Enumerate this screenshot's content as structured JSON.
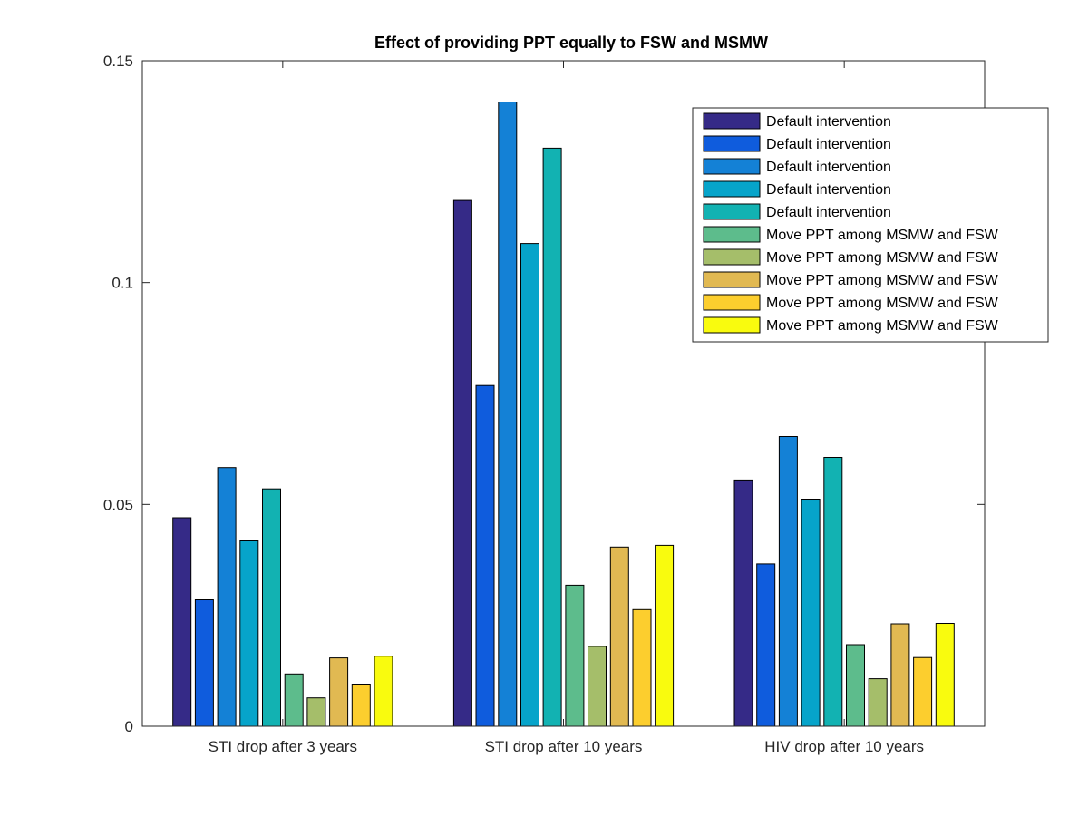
{
  "chart_data": {
    "type": "bar",
    "title": "Effect of providing PPT equally to FSW and MSMW",
    "xlabel": "",
    "ylabel": "",
    "ylim": [
      0,
      0.15
    ],
    "yticks": [
      0,
      0.05,
      0.1,
      0.15
    ],
    "ytick_labels": [
      "0",
      "0.05",
      "0.1",
      "0.15"
    ],
    "categories": [
      "STI drop after 3 years",
      "STI drop after 10 years",
      "HIV drop after 10 years"
    ],
    "legend_position": "top-right",
    "series": [
      {
        "name": "Default intervention",
        "color": "#352A87",
        "values": [
          0.047,
          0.1185,
          0.0555
        ]
      },
      {
        "name": "Default intervention",
        "color": "#0F5CDD",
        "values": [
          0.0285,
          0.0768,
          0.0366
        ]
      },
      {
        "name": "Default intervention",
        "color": "#1481D6",
        "values": [
          0.0583,
          0.1407,
          0.0653
        ]
      },
      {
        "name": "Default intervention",
        "color": "#06A4CA",
        "values": [
          0.0418,
          0.1088,
          0.0512
        ]
      },
      {
        "name": "Default intervention",
        "color": "#12B2B2",
        "values": [
          0.0535,
          0.1303,
          0.0606
        ]
      },
      {
        "name": "Move PPT among MSMW and FSW",
        "color": "#5DBC8C",
        "values": [
          0.0118,
          0.0318,
          0.0184
        ]
      },
      {
        "name": "Move PPT among MSMW and FSW",
        "color": "#A5BE6A",
        "values": [
          0.0064,
          0.018,
          0.0107
        ]
      },
      {
        "name": "Move PPT among MSMW and FSW",
        "color": "#E1B952",
        "values": [
          0.0154,
          0.0404,
          0.0231
        ]
      },
      {
        "name": "Move PPT among MSMW and FSW",
        "color": "#FCCE2E",
        "values": [
          0.0095,
          0.0263,
          0.0155
        ]
      },
      {
        "name": "Move PPT among MSMW and FSW",
        "color": "#F9FB0E",
        "values": [
          0.0158,
          0.0408,
          0.0232
        ]
      }
    ]
  }
}
